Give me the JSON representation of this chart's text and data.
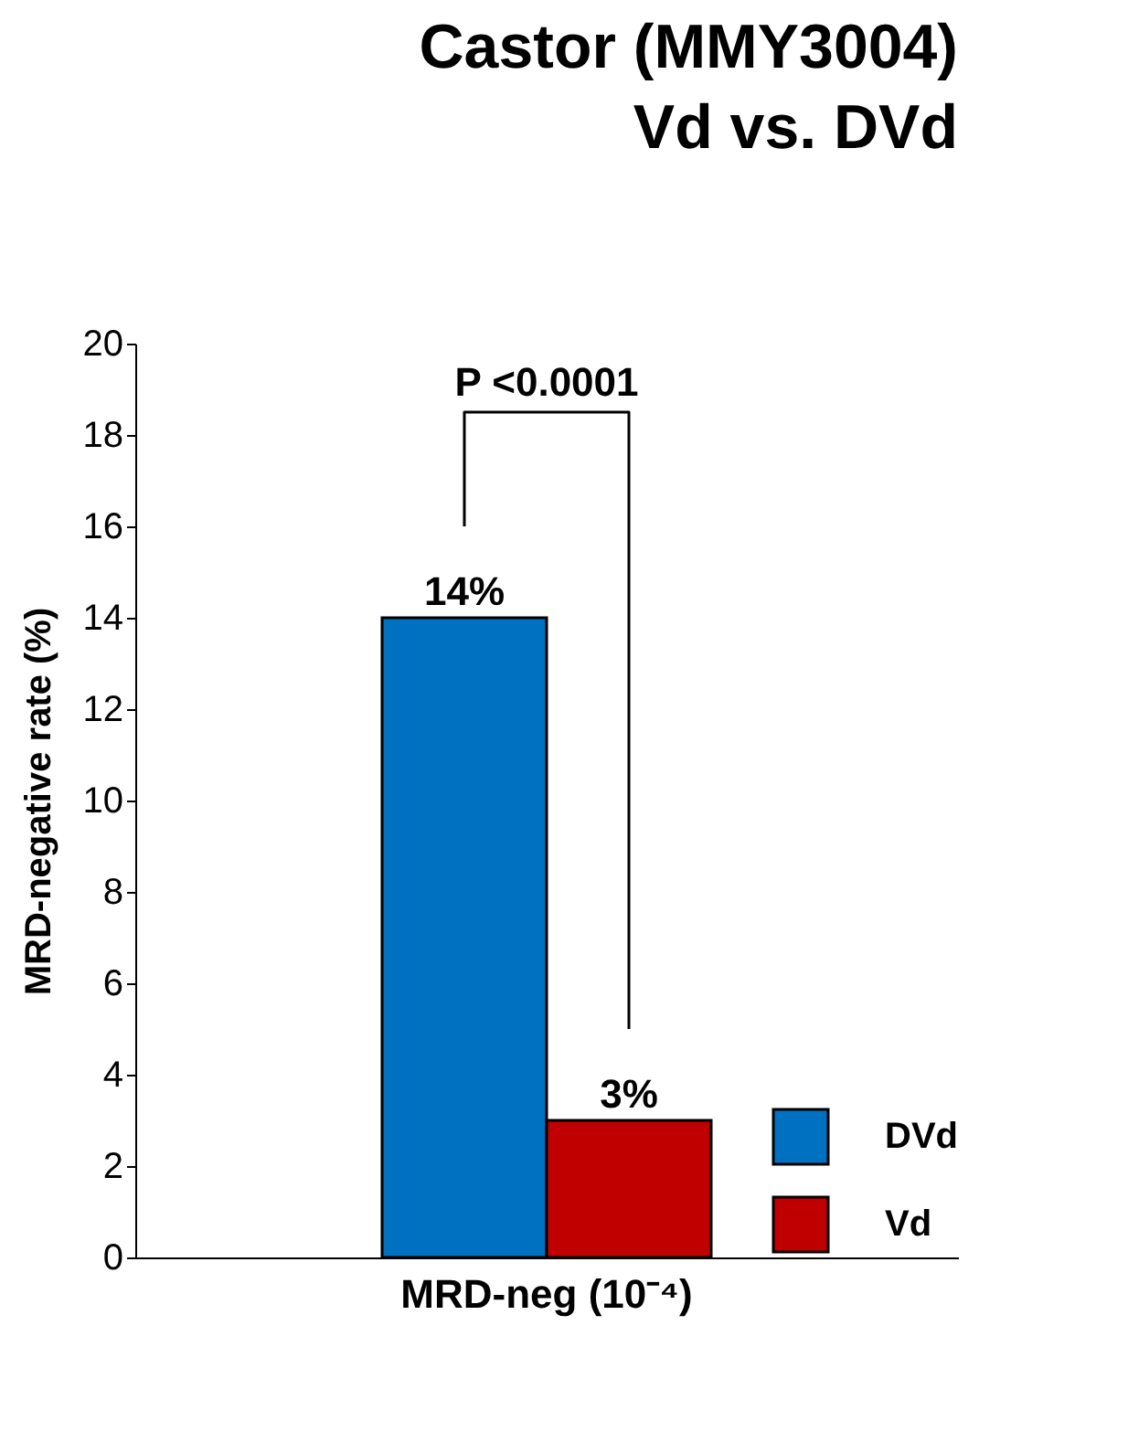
{
  "chart_data": {
    "type": "bar",
    "title": [
      "Castor (MMY3004)",
      "Vd vs. DVd"
    ],
    "ylabel": "MRD-negative rate (%)",
    "categories": [
      "MRD-neg (10⁻⁴)"
    ],
    "series": [
      {
        "name": "DVd",
        "color": "#0070c0",
        "values": [
          14
        ],
        "value_labels": [
          "14%"
        ]
      },
      {
        "name": "Vd",
        "color": "#c00000",
        "values": [
          3
        ],
        "value_labels": [
          "3%"
        ]
      }
    ],
    "ylim": [
      0,
      20
    ],
    "yticks": [
      0,
      2,
      4,
      6,
      8,
      10,
      12,
      14,
      16,
      18,
      20
    ],
    "annotations": [
      "P <0.0001"
    ],
    "grid": false,
    "legend": "bottom right"
  }
}
